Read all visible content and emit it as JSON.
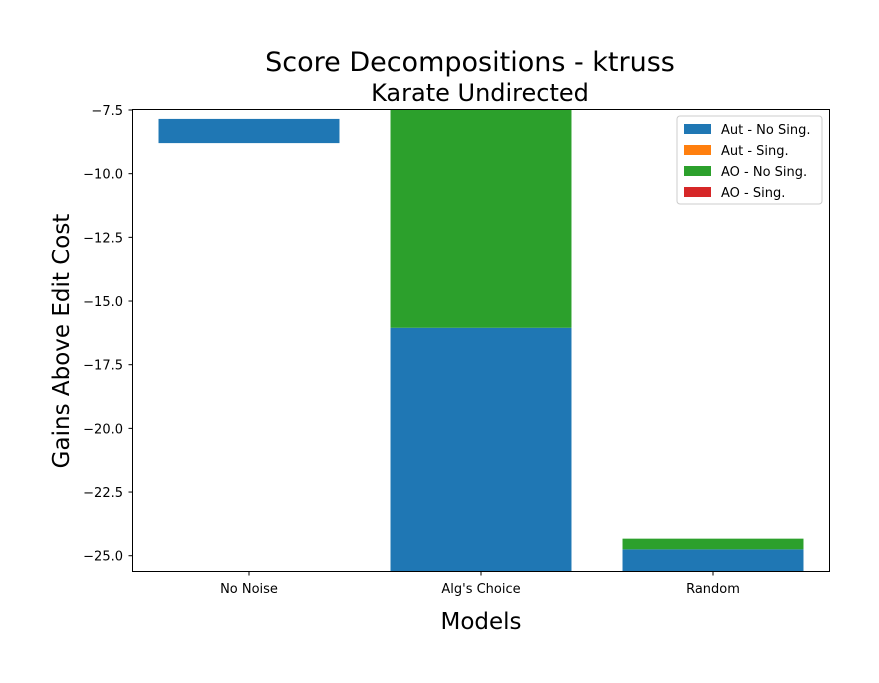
{
  "chart_data": {
    "type": "bar",
    "stacked": true,
    "title": "Score Decompositions - ktruss",
    "subtitle": "Karate Undirected",
    "xlabel": "Models",
    "ylabel": "Gains Above Edit Cost",
    "categories": [
      "No Noise",
      "Alg's Choice",
      "Random"
    ],
    "ylim": [
      -25.6,
      -7.5
    ],
    "yticks": [
      -7.5,
      -10.0,
      -12.5,
      -15.0,
      -17.5,
      -20.0,
      -22.5,
      -25.0
    ],
    "ytick_labels": [
      "−7.5",
      "−10.0",
      "−12.5",
      "−15.0",
      "−17.5",
      "−20.0",
      "−22.5",
      "−25.0"
    ],
    "grid": false,
    "legend_position": "top-right",
    "series": [
      {
        "name": "Aut - No Sing.",
        "color": "#1f77b4",
        "segments": [
          [
            -8.8,
            -7.85
          ],
          [
            -25.6,
            -16.05
          ],
          [
            -25.6,
            -24.75
          ]
        ]
      },
      {
        "name": "Aut - Sing.",
        "color": "#ff7f0e",
        "segments": [
          null,
          null,
          null
        ]
      },
      {
        "name": "AO - No Sing.",
        "color": "#2ca02c",
        "segments": [
          null,
          [
            -16.05,
            -7.5
          ],
          [
            -24.75,
            -24.33
          ]
        ]
      },
      {
        "name": "AO - Sing.",
        "color": "#d62728",
        "segments": [
          null,
          null,
          null
        ]
      }
    ]
  }
}
